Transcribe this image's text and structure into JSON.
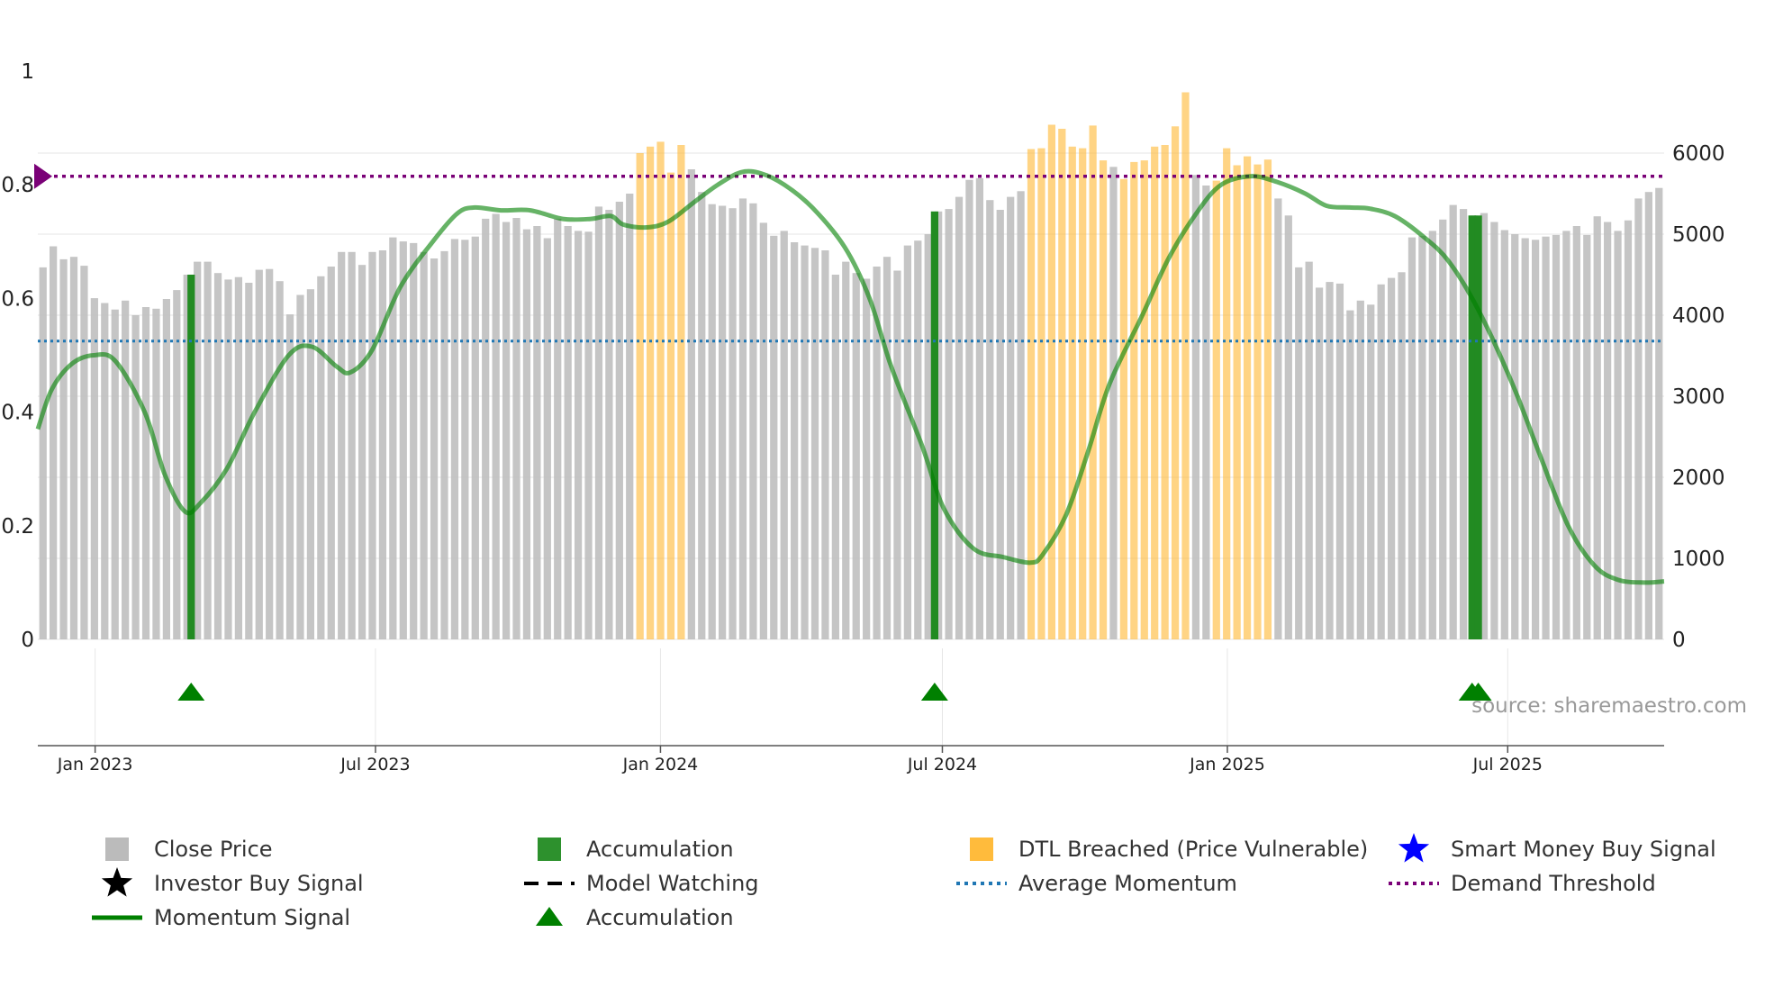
{
  "chart_data": {
    "type": "bar",
    "title": "",
    "source_label": "source: sharemaestro.com",
    "left_axis": {
      "range": [
        0,
        1
      ],
      "ticks": [
        "0",
        "0.2",
        "0.4",
        "0.6",
        "0.8",
        "1"
      ],
      "tick_values": [
        0,
        0.2,
        0.4,
        0.6,
        0.8,
        1
      ]
    },
    "right_axis": {
      "range": [
        0,
        7000
      ],
      "ticks": [
        "0",
        "1000",
        "2000",
        "3000",
        "4000",
        "5000",
        "6000"
      ],
      "tick_values": [
        0,
        1000,
        2000,
        3000,
        4000,
        5000,
        6000
      ]
    },
    "x_axis": {
      "start": "2022-11-25",
      "end": "2025-10-10",
      "tick_labels": [
        "Jan 2023",
        "Jul 2023",
        "Jan 2024",
        "Jul 2024",
        "Jan 2025",
        "Jul 2025"
      ],
      "tick_dates": [
        "2023-01-01",
        "2023-07-01",
        "2024-01-01",
        "2024-07-01",
        "2025-01-01",
        "2025-07-01"
      ]
    },
    "average_momentum": 0.525,
    "demand_threshold": 0.815,
    "close_price": [
      4590,
      4850,
      4690,
      4720,
      4610,
      4210,
      4150,
      4070,
      4180,
      4000,
      4100,
      4080,
      4200,
      4310,
      4500,
      4660,
      4660,
      4520,
      4440,
      4470,
      4400,
      4560,
      4570,
      4420,
      4010,
      4250,
      4320,
      4480,
      4600,
      4780,
      4780,
      4620,
      4780,
      4800,
      4960,
      4910,
      4890,
      4780,
      4700,
      4790,
      4940,
      4930,
      4970,
      5190,
      5250,
      5150,
      5200,
      5060,
      5100,
      4950,
      5190,
      5100,
      5040,
      5030,
      5340,
      5300,
      5400,
      5500,
      6000,
      6080,
      6140,
      5760,
      6100,
      5800,
      5520,
      5370,
      5350,
      5320,
      5440,
      5380,
      5140,
      4980,
      5040,
      4900,
      4860,
      4830,
      4800,
      4500,
      4660,
      4520,
      4450,
      4600,
      4720,
      4550,
      4860,
      4920,
      5000,
      5280,
      5310,
      5460,
      5670,
      5690,
      5420,
      5300,
      5460,
      5530,
      6050,
      6060,
      6350,
      6300,
      6080,
      6060,
      6340,
      5910,
      5830,
      5680,
      5890,
      5910,
      6080,
      6100,
      6330,
      6750,
      5730,
      5600,
      5660,
      6060,
      5850,
      5960,
      5860,
      5920,
      5440,
      5230,
      4590,
      4660,
      4340,
      4410,
      4390,
      4060,
      4180,
      4130,
      4380,
      4460,
      4530,
      4960,
      4980,
      5040,
      5180,
      5360,
      5310,
      5230,
      5260,
      5150,
      5050,
      5000,
      4950,
      4930,
      4970,
      4990,
      5040,
      5100,
      4990,
      5220,
      5150,
      5040,
      5170,
      5440,
      5520,
      5570
    ],
    "bar_categories": [
      "U",
      "U",
      "U",
      "U",
      "U",
      "U",
      "U",
      "U",
      "U",
      "U",
      "U",
      "U",
      "U",
      "U",
      "U",
      "U",
      "U",
      "U",
      "U",
      "U",
      "U",
      "U",
      "U",
      "U",
      "U",
      "U",
      "U",
      "U",
      "U",
      "U",
      "U",
      "U",
      "U",
      "U",
      "U",
      "U",
      "U",
      "U",
      "U",
      "U",
      "U",
      "U",
      "U",
      "U",
      "U",
      "U",
      "U",
      "U",
      "U",
      "U",
      "U",
      "U",
      "U",
      "U",
      "U",
      "U",
      "U",
      "U",
      "D",
      "D",
      "D",
      "D",
      "D",
      "U",
      "U",
      "U",
      "U",
      "U",
      "U",
      "U",
      "U",
      "U",
      "U",
      "U",
      "U",
      "U",
      "U",
      "U",
      "U",
      "U",
      "U",
      "U",
      "U",
      "U",
      "U",
      "U",
      "U",
      "U",
      "U",
      "U",
      "U",
      "U",
      "U",
      "U",
      "U",
      "U",
      "D",
      "D",
      "D",
      "D",
      "D",
      "D",
      "D",
      "D",
      "U",
      "D",
      "D",
      "D",
      "D",
      "D",
      "D",
      "D",
      "U",
      "U",
      "D",
      "D",
      "D",
      "D",
      "D",
      "D",
      "U",
      "U",
      "U",
      "U",
      "U",
      "U",
      "U",
      "U",
      "U",
      "U",
      "U",
      "U",
      "U",
      "U",
      "U",
      "U",
      "U",
      "U",
      "U",
      "U",
      "U",
      "U",
      "U",
      "U",
      "U",
      "U",
      "U",
      "U",
      "U",
      "U",
      "U",
      "U",
      "U",
      "U",
      "U",
      "U",
      "U",
      "U"
    ],
    "momentum_signal": [
      [
        "2022-11-25",
        0.37
      ],
      [
        "2022-12-04",
        0.44
      ],
      [
        "2022-12-17",
        0.485
      ],
      [
        "2022-12-31",
        0.5
      ],
      [
        "2023-01-14",
        0.49
      ],
      [
        "2023-02-02",
        0.4
      ],
      [
        "2023-02-15",
        0.29
      ],
      [
        "2023-02-28",
        0.225
      ],
      [
        "2023-03-10",
        0.24
      ],
      [
        "2023-03-27",
        0.3
      ],
      [
        "2023-04-14",
        0.4
      ],
      [
        "2023-05-06",
        0.5
      ],
      [
        "2023-05-21",
        0.515
      ],
      [
        "2023-06-06",
        0.48
      ],
      [
        "2023-06-15",
        0.47
      ],
      [
        "2023-06-29",
        0.51
      ],
      [
        "2023-07-17",
        0.62
      ],
      [
        "2023-08-07",
        0.7
      ],
      [
        "2023-08-23",
        0.75
      ],
      [
        "2023-09-03",
        0.76
      ],
      [
        "2023-09-20",
        0.755
      ],
      [
        "2023-10-09",
        0.755
      ],
      [
        "2023-10-30",
        0.74
      ],
      [
        "2023-11-17",
        0.74
      ],
      [
        "2023-11-30",
        0.745
      ],
      [
        "2023-12-08",
        0.73
      ],
      [
        "2023-12-23",
        0.725
      ],
      [
        "2024-01-06",
        0.735
      ],
      [
        "2024-01-23",
        0.77
      ],
      [
        "2024-02-07",
        0.8
      ],
      [
        "2024-02-22",
        0.822
      ],
      [
        "2024-03-06",
        0.82
      ],
      [
        "2024-03-21",
        0.8
      ],
      [
        "2024-04-08",
        0.76
      ],
      [
        "2024-04-29",
        0.69
      ],
      [
        "2024-05-15",
        0.6
      ],
      [
        "2024-05-29",
        0.48
      ],
      [
        "2024-06-18",
        0.34
      ],
      [
        "2024-07-02",
        0.23
      ],
      [
        "2024-07-21",
        0.16
      ],
      [
        "2024-08-09",
        0.145
      ],
      [
        "2024-08-27",
        0.135
      ],
      [
        "2024-09-04",
        0.15
      ],
      [
        "2024-09-19",
        0.22
      ],
      [
        "2024-10-03",
        0.33
      ],
      [
        "2024-10-17",
        0.45
      ],
      [
        "2024-11-07",
        0.57
      ],
      [
        "2024-11-24",
        0.67
      ],
      [
        "2024-12-12",
        0.75
      ],
      [
        "2024-12-28",
        0.8
      ],
      [
        "2025-01-16",
        0.815
      ],
      [
        "2025-02-02",
        0.805
      ],
      [
        "2025-02-20",
        0.785
      ],
      [
        "2025-03-06",
        0.763
      ],
      [
        "2025-03-21",
        0.76
      ],
      [
        "2025-04-03",
        0.758
      ],
      [
        "2025-04-19",
        0.745
      ],
      [
        "2025-05-07",
        0.71
      ],
      [
        "2025-05-24",
        0.665
      ],
      [
        "2025-06-12",
        0.58
      ],
      [
        "2025-07-04",
        0.45
      ],
      [
        "2025-07-21",
        0.33
      ],
      [
        "2025-08-09",
        0.2
      ],
      [
        "2025-08-26",
        0.13
      ],
      [
        "2025-09-10",
        0.105
      ],
      [
        "2025-09-27",
        0.1
      ],
      [
        "2025-10-10",
        0.102
      ]
    ],
    "accumulation_markers": [
      "2023-03-04",
      "2024-06-26",
      "2025-06-08",
      "2025-06-12"
    ],
    "legend": [
      {
        "symbol": "square",
        "color": "#bbbbbb",
        "label": "Close Price"
      },
      {
        "symbol": "square",
        "color": "#228b22",
        "label": "Accumulation"
      },
      {
        "symbol": "square",
        "color": "#ffb732",
        "label": "DTL Breached (Price Vulnerable)"
      },
      {
        "symbol": "star",
        "color": "#0000ff",
        "label": "Smart Money Buy Signal"
      },
      {
        "symbol": "star",
        "color": "#000000",
        "label": "Investor Buy Signal"
      },
      {
        "symbol": "dash",
        "color": "#000000",
        "label": "Model Watching"
      },
      {
        "symbol": "dots",
        "color": "#1f77b4",
        "label": "Average Momentum"
      },
      {
        "symbol": "dots",
        "color": "#7a0177",
        "label": "Demand Threshold"
      },
      {
        "symbol": "line",
        "color": "#008000",
        "label": "Momentum Signal"
      },
      {
        "symbol": "triangle",
        "color": "#008000",
        "label": "Accumulation"
      }
    ],
    "colors": {
      "close_bar": "#bbbbbb",
      "dtl_bar": "#ffb732",
      "accumulation_bar": "#228b22",
      "momentum_line": "#008000",
      "average_momentum": "#1f77b4",
      "demand_threshold": "#7a0177",
      "threshold_marker": "#7a0177",
      "grid": "#e6e6e6",
      "axis": "#555555",
      "source_text": "#999999"
    }
  }
}
